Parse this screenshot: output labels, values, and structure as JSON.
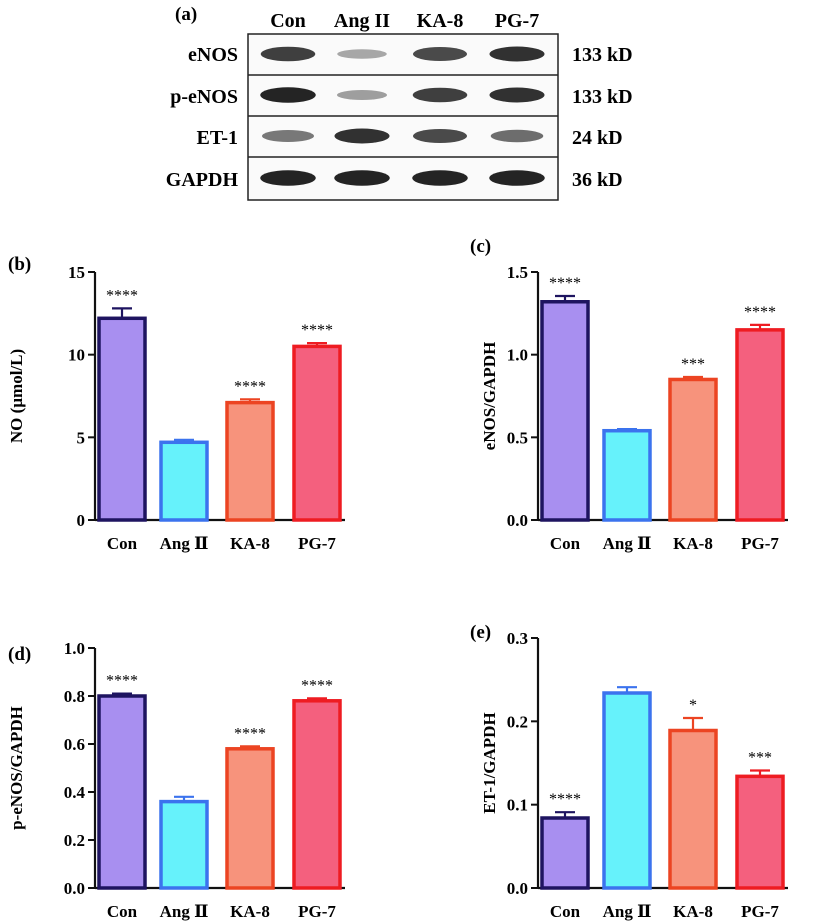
{
  "blot": {
    "panel_label": "(a)",
    "lanes": [
      "Con",
      "Ang II",
      "KA-8",
      "PG-7"
    ],
    "rows": [
      {
        "protein": "eNOS",
        "size": "133 kD",
        "intensity": [
          0.85,
          0.35,
          0.8,
          0.9
        ]
      },
      {
        "protein": "p-eNOS",
        "size": "133 kD",
        "intensity": [
          0.95,
          0.4,
          0.85,
          0.9
        ]
      },
      {
        "protein": "ET-1",
        "size": "24 kD",
        "intensity": [
          0.6,
          0.9,
          0.8,
          0.65
        ]
      },
      {
        "protein": "GAPDH",
        "size": "36 kD",
        "intensity": [
          0.95,
          0.95,
          0.95,
          0.95
        ]
      }
    ]
  },
  "colors": {
    "con_fill": "#a88ff0",
    "con_stroke": "#1e1460",
    "ang_fill": "#66f2fb",
    "ang_stroke": "#3b73ee",
    "ka_fill": "#f7937c",
    "ka_stroke": "#ec4422",
    "pg_fill": "#f4607e",
    "pg_stroke": "#ee1c22"
  },
  "chart_data": [
    {
      "id": "b",
      "panel_label": "(b)",
      "type": "bar",
      "categories": [
        "Con",
        "Ang Ⅱ",
        "KA-8",
        "PG-7"
      ],
      "values": [
        12.2,
        4.7,
        7.1,
        10.5
      ],
      "errors": [
        0.6,
        0.15,
        0.2,
        0.2
      ],
      "significance": [
        "****",
        "",
        "****",
        "****"
      ],
      "ylabel": "NO (µmol/L)",
      "ylim": [
        0,
        15
      ],
      "yticks": [
        0,
        5,
        10,
        15
      ],
      "ytick_labels": [
        "0",
        "5",
        "10",
        "15"
      ]
    },
    {
      "id": "c",
      "panel_label": "(c)",
      "type": "bar",
      "categories": [
        "Con",
        "Ang Ⅱ",
        "KA-8",
        "PG-7"
      ],
      "values": [
        1.32,
        0.54,
        0.85,
        1.15
      ],
      "errors": [
        0.035,
        0.01,
        0.015,
        0.03
      ],
      "significance": [
        "****",
        "",
        "***",
        "****"
      ],
      "ylabel": "eNOS/GAPDH",
      "ylim": [
        0,
        1.5
      ],
      "yticks": [
        0,
        0.5,
        1.0,
        1.5
      ],
      "ytick_labels": [
        "0.0",
        "0.5",
        "1.0",
        "1.5"
      ]
    },
    {
      "id": "d",
      "panel_label": "(d)",
      "type": "bar",
      "categories": [
        "Con",
        "Ang Ⅱ",
        "KA-8",
        "PG-7"
      ],
      "values": [
        0.8,
        0.36,
        0.58,
        0.78
      ],
      "errors": [
        0.01,
        0.02,
        0.01,
        0.01
      ],
      "significance": [
        "****",
        "",
        "****",
        "****"
      ],
      "ylabel": "p-eNOS/GAPDH",
      "ylim": [
        0,
        1.0
      ],
      "yticks": [
        0,
        0.2,
        0.4,
        0.6,
        0.8,
        1.0
      ],
      "ytick_labels": [
        "0.0",
        "0.2",
        "0.4",
        "0.6",
        "0.8",
        "1.0"
      ]
    },
    {
      "id": "e",
      "panel_label": "(e)",
      "type": "bar",
      "categories": [
        "Con",
        "Ang Ⅱ",
        "KA-8",
        "PG-7"
      ],
      "values": [
        0.084,
        0.234,
        0.189,
        0.134
      ],
      "errors": [
        0.007,
        0.007,
        0.015,
        0.007
      ],
      "significance": [
        "****",
        "",
        "*",
        "***"
      ],
      "ylabel": "ET-1/GAPDH",
      "ylim": [
        0,
        0.3
      ],
      "yticks": [
        0,
        0.1,
        0.2,
        0.3
      ],
      "ytick_labels": [
        "0.0",
        "0.1",
        "0.2",
        "0.3"
      ]
    }
  ]
}
